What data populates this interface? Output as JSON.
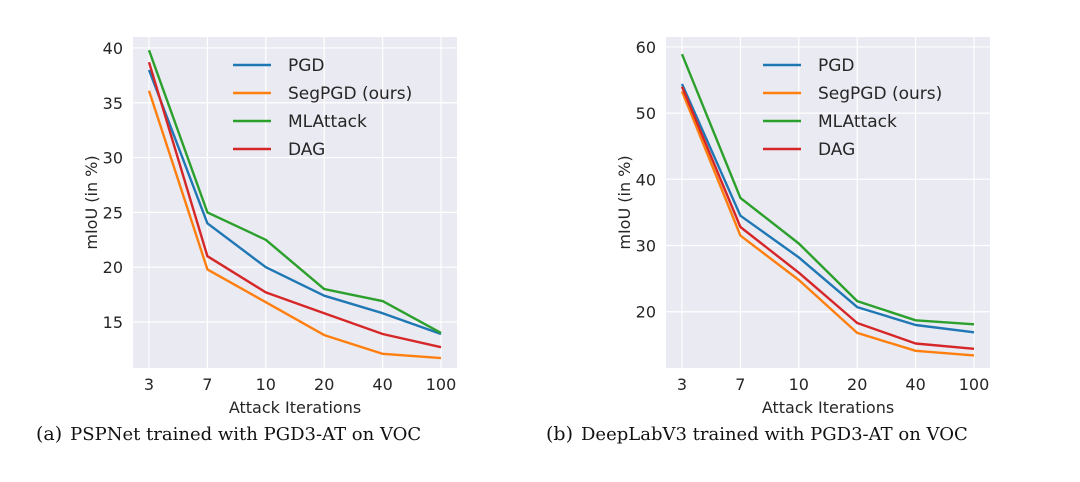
{
  "chart_data": [
    {
      "type": "line",
      "caption_tag": "(a)",
      "caption": "PSPNet trained with PGD3-AT on VOC",
      "xlabel": "Attack Iterations",
      "ylabel": "mIoU (in %)",
      "categories": [
        "3",
        "7",
        "10",
        "20",
        "40",
        "100"
      ],
      "yticks": [
        15,
        20,
        25,
        30,
        35,
        40
      ],
      "ylim": [
        10.8,
        41.0
      ],
      "grid": true,
      "legend_position": "top-right",
      "series": [
        {
          "name": "PGD",
          "color": "#1f77b4",
          "values": [
            38.0,
            24.0,
            20.0,
            17.4,
            15.8,
            13.9
          ]
        },
        {
          "name": "SegPGD (ours)",
          "color": "#ff7f0e",
          "values": [
            36.1,
            19.8,
            16.8,
            13.8,
            12.1,
            11.7
          ]
        },
        {
          "name": "MLAttack",
          "color": "#2ca02c",
          "values": [
            39.8,
            25.0,
            22.5,
            18.0,
            16.9,
            14.0
          ]
        },
        {
          "name": "DAG",
          "color": "#d62728",
          "values": [
            38.7,
            21.0,
            17.7,
            15.8,
            13.9,
            12.7
          ]
        }
      ]
    },
    {
      "type": "line",
      "caption_tag": "(b)",
      "caption": "DeepLabV3 trained with PGD3-AT on VOC",
      "xlabel": "Attack Iterations",
      "ylabel": "mIoU (in %)",
      "categories": [
        "3",
        "7",
        "10",
        "20",
        "40",
        "100"
      ],
      "yticks": [
        20,
        30,
        40,
        50,
        60
      ],
      "ylim": [
        11.5,
        61.5
      ],
      "grid": true,
      "legend_position": "top-right",
      "series": [
        {
          "name": "PGD",
          "color": "#1f77b4",
          "values": [
            54.4,
            34.5,
            28.2,
            20.7,
            18.0,
            16.9
          ]
        },
        {
          "name": "SegPGD (ours)",
          "color": "#ff7f0e",
          "values": [
            53.3,
            31.5,
            24.8,
            16.8,
            14.1,
            13.4
          ]
        },
        {
          "name": "MLAttack",
          "color": "#2ca02c",
          "values": [
            58.9,
            37.2,
            30.3,
            21.6,
            18.7,
            18.1
          ]
        },
        {
          "name": "DAG",
          "color": "#d62728",
          "values": [
            54.0,
            32.8,
            25.9,
            18.3,
            15.2,
            14.4
          ]
        }
      ]
    }
  ]
}
